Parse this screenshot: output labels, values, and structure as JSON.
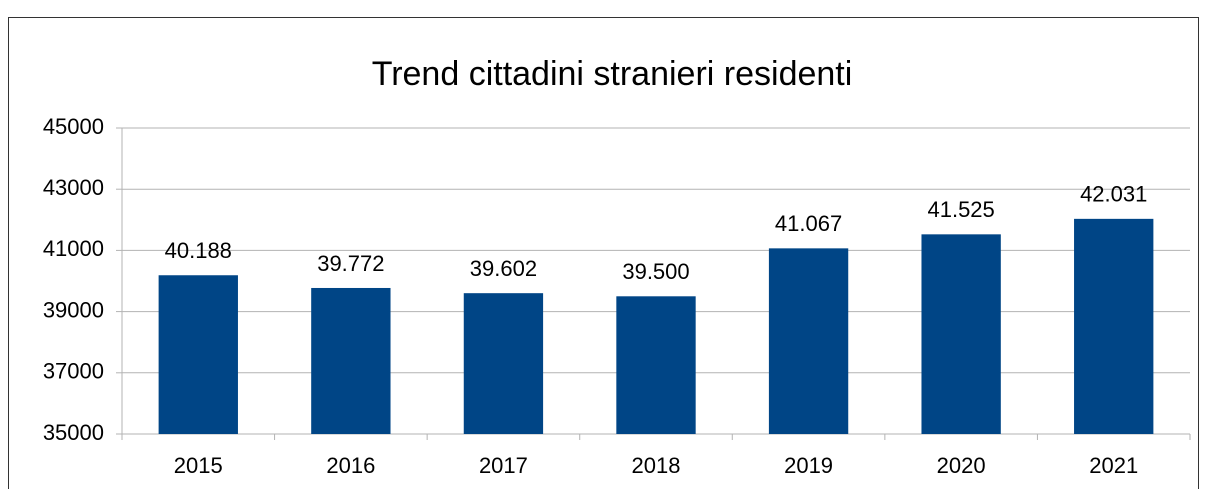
{
  "chart_data": {
    "type": "bar",
    "title": "Trend cittadini stranieri residenti",
    "categories": [
      "2015",
      "2016",
      "2017",
      "2018",
      "2019",
      "2020",
      "2021"
    ],
    "values": [
      40188,
      39772,
      39602,
      39500,
      41067,
      41525,
      42031
    ],
    "value_labels": [
      "40.188",
      "39.772",
      "39.602",
      "39.500",
      "41.067",
      "41.525",
      "42.031"
    ],
    "color": "#004586",
    "ylim": [
      35000,
      45000
    ],
    "yticks": [
      35000,
      37000,
      39000,
      41000,
      43000,
      45000
    ],
    "grid": true
  }
}
